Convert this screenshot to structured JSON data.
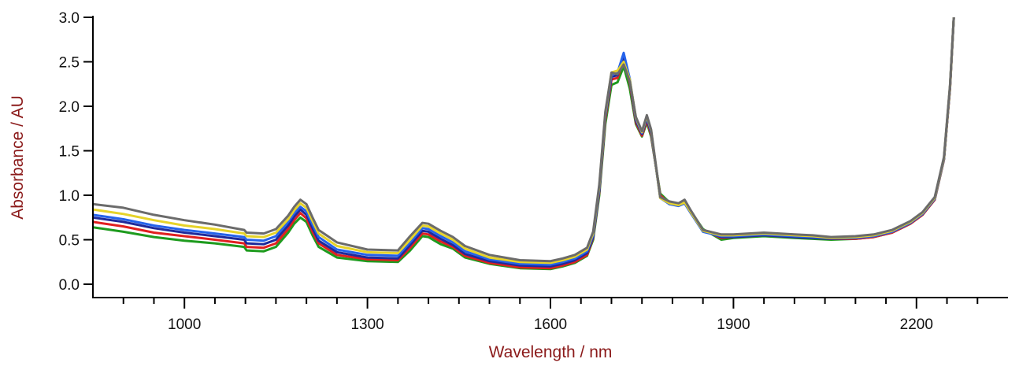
{
  "chart_data": {
    "type": "line",
    "title": "",
    "xlabel": "Wavelength / nm",
    "ylabel": "Absorbance / AU",
    "label_color": "#8b1a1a",
    "xlim": [
      850,
      2350
    ],
    "ylim": [
      -0.15,
      3.0
    ],
    "xticks": [
      1000,
      1300,
      1600,
      1900,
      2200
    ],
    "xtick_labels": [
      "1000",
      "1300",
      "1600",
      "1900",
      "2200"
    ],
    "yticks": [
      0.0,
      0.5,
      1.0,
      1.5,
      2.0,
      2.5,
      3.0
    ],
    "ytick_labels": [
      "0.0",
      "0.5",
      "1.0",
      "1.5",
      "2.0",
      "2.5",
      "3.0"
    ],
    "grid": false,
    "legend": "none",
    "x": [
      850,
      900,
      950,
      1000,
      1050,
      1098,
      1102,
      1130,
      1150,
      1170,
      1180,
      1190,
      1200,
      1210,
      1220,
      1250,
      1300,
      1350,
      1370,
      1390,
      1400,
      1410,
      1420,
      1440,
      1460,
      1500,
      1550,
      1600,
      1620,
      1640,
      1660,
      1670,
      1680,
      1690,
      1700,
      1710,
      1720,
      1730,
      1740,
      1750,
      1758,
      1765,
      1780,
      1795,
      1810,
      1820,
      1830,
      1850,
      1880,
      1900,
      1950,
      2000,
      2030,
      2060,
      2100,
      2130,
      2160,
      2190,
      2210,
      2230,
      2245,
      2255,
      2262
    ],
    "series": [
      {
        "color": "#1e9b1e",
        "values": [
          0.64,
          0.59,
          0.53,
          0.49,
          0.46,
          0.42,
          0.38,
          0.37,
          0.42,
          0.58,
          0.68,
          0.75,
          0.7,
          0.55,
          0.42,
          0.3,
          0.26,
          0.25,
          0.38,
          0.54,
          0.53,
          0.49,
          0.45,
          0.4,
          0.3,
          0.23,
          0.18,
          0.17,
          0.2,
          0.24,
          0.32,
          0.5,
          1.0,
          1.8,
          2.24,
          2.27,
          2.45,
          2.2,
          1.8,
          1.66,
          1.82,
          1.66,
          1.02,
          0.92,
          0.9,
          0.92,
          0.82,
          0.62,
          0.5,
          0.52,
          0.54,
          0.52,
          0.51,
          0.5,
          0.51,
          0.53,
          0.58,
          0.68,
          0.78,
          0.95,
          1.4,
          2.2,
          3.1
        ]
      },
      {
        "color": "#e02020",
        "values": [
          0.7,
          0.65,
          0.58,
          0.54,
          0.5,
          0.46,
          0.42,
          0.41,
          0.46,
          0.62,
          0.72,
          0.8,
          0.74,
          0.59,
          0.46,
          0.33,
          0.28,
          0.27,
          0.41,
          0.57,
          0.56,
          0.52,
          0.48,
          0.42,
          0.32,
          0.24,
          0.19,
          0.18,
          0.21,
          0.25,
          0.33,
          0.52,
          1.03,
          1.85,
          2.3,
          2.32,
          2.53,
          2.26,
          1.82,
          1.67,
          1.84,
          1.68,
          1.0,
          0.91,
          0.89,
          0.92,
          0.81,
          0.61,
          0.52,
          0.53,
          0.55,
          0.53,
          0.52,
          0.51,
          0.51,
          0.53,
          0.58,
          0.68,
          0.78,
          0.95,
          1.4,
          2.2,
          3.1
        ]
      },
      {
        "color": "#1e2a9b",
        "values": [
          0.75,
          0.7,
          0.63,
          0.58,
          0.54,
          0.5,
          0.46,
          0.45,
          0.5,
          0.66,
          0.76,
          0.84,
          0.78,
          0.63,
          0.49,
          0.36,
          0.3,
          0.29,
          0.44,
          0.6,
          0.59,
          0.55,
          0.51,
          0.44,
          0.34,
          0.26,
          0.21,
          0.2,
          0.23,
          0.27,
          0.35,
          0.53,
          1.05,
          1.88,
          2.33,
          2.35,
          2.56,
          2.28,
          1.84,
          1.69,
          1.86,
          1.7,
          0.98,
          0.9,
          0.89,
          0.91,
          0.8,
          0.6,
          0.53,
          0.53,
          0.55,
          0.53,
          0.52,
          0.51,
          0.52,
          0.54,
          0.59,
          0.69,
          0.79,
          0.96,
          1.41,
          2.22,
          3.1
        ]
      },
      {
        "color": "#2563eb",
        "values": [
          0.78,
          0.73,
          0.66,
          0.61,
          0.57,
          0.53,
          0.5,
          0.49,
          0.54,
          0.7,
          0.8,
          0.87,
          0.82,
          0.67,
          0.53,
          0.39,
          0.33,
          0.32,
          0.47,
          0.63,
          0.62,
          0.58,
          0.54,
          0.47,
          0.37,
          0.28,
          0.23,
          0.22,
          0.25,
          0.29,
          0.37,
          0.55,
          1.08,
          1.9,
          2.36,
          2.38,
          2.6,
          2.31,
          1.86,
          1.7,
          1.88,
          1.72,
          0.97,
          0.9,
          0.88,
          0.91,
          0.8,
          0.59,
          0.54,
          0.54,
          0.56,
          0.54,
          0.53,
          0.52,
          0.52,
          0.54,
          0.59,
          0.69,
          0.79,
          0.96,
          1.41,
          2.22,
          3.1
        ]
      },
      {
        "color": "#e6d32a",
        "values": [
          0.84,
          0.79,
          0.72,
          0.66,
          0.62,
          0.57,
          0.54,
          0.53,
          0.58,
          0.73,
          0.83,
          0.91,
          0.86,
          0.71,
          0.57,
          0.43,
          0.36,
          0.35,
          0.5,
          0.66,
          0.65,
          0.61,
          0.57,
          0.5,
          0.4,
          0.3,
          0.25,
          0.24,
          0.27,
          0.31,
          0.39,
          0.57,
          1.1,
          1.92,
          2.38,
          2.4,
          2.5,
          2.3,
          1.87,
          1.71,
          1.89,
          1.73,
          0.97,
          0.91,
          0.89,
          0.92,
          0.81,
          0.6,
          0.55,
          0.55,
          0.57,
          0.55,
          0.54,
          0.52,
          0.53,
          0.55,
          0.6,
          0.7,
          0.8,
          0.97,
          1.42,
          2.23,
          3.1
        ]
      },
      {
        "color": "#6b6b6b",
        "values": [
          0.9,
          0.86,
          0.78,
          0.72,
          0.67,
          0.61,
          0.58,
          0.57,
          0.62,
          0.77,
          0.87,
          0.95,
          0.9,
          0.75,
          0.61,
          0.47,
          0.39,
          0.38,
          0.54,
          0.69,
          0.68,
          0.64,
          0.6,
          0.53,
          0.43,
          0.33,
          0.27,
          0.26,
          0.29,
          0.33,
          0.41,
          0.59,
          1.12,
          1.94,
          2.38,
          2.36,
          2.47,
          2.28,
          1.88,
          1.72,
          1.9,
          1.74,
          0.98,
          0.93,
          0.91,
          0.95,
          0.83,
          0.61,
          0.56,
          0.56,
          0.58,
          0.56,
          0.55,
          0.53,
          0.54,
          0.56,
          0.61,
          0.71,
          0.81,
          0.98,
          1.43,
          2.24,
          3.1
        ]
      }
    ]
  }
}
